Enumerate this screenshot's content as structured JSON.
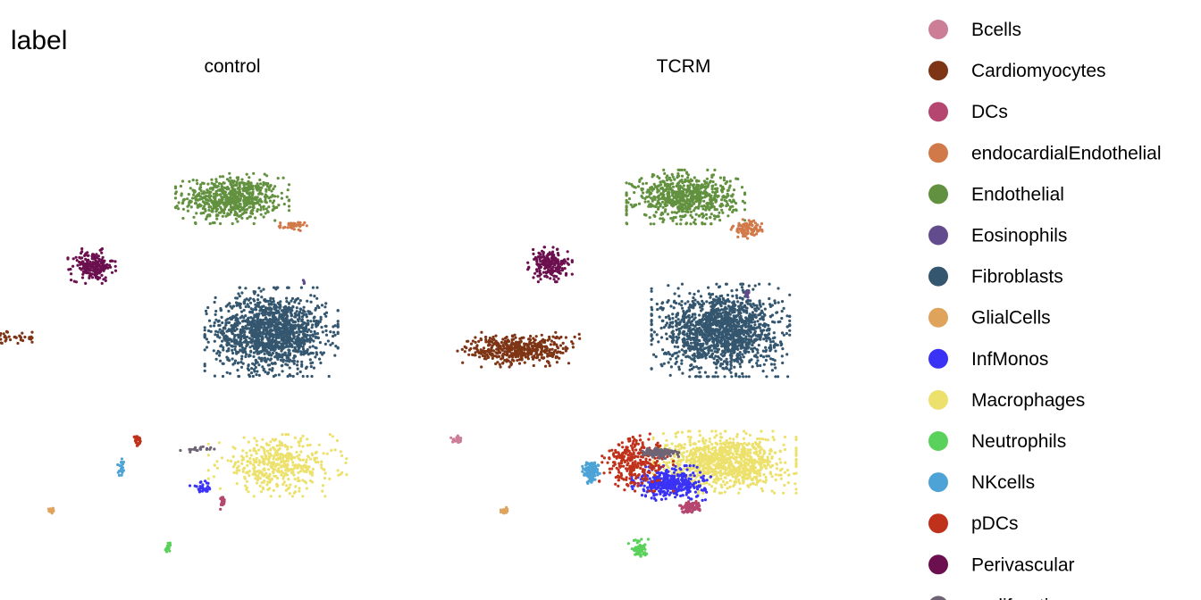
{
  "chart_data": {
    "type": "scatter",
    "title": "label",
    "facets": [
      "control",
      "TCRM"
    ],
    "legend_position": "right",
    "grid": false,
    "axes_visible": false,
    "categories": [
      {
        "name": "Bcells",
        "color": "#CC7E96"
      },
      {
        "name": "Cardiomyocytes",
        "color": "#7E3515"
      },
      {
        "name": "DCs",
        "color": "#B5466F"
      },
      {
        "name": "endocardialEndothelial",
        "color": "#D2794A"
      },
      {
        "name": "Endothelial",
        "color": "#62913F"
      },
      {
        "name": "Eosinophils",
        "color": "#634C8D"
      },
      {
        "name": "Fibroblasts",
        "color": "#34566F"
      },
      {
        "name": "GlialCells",
        "color": "#E0A35C"
      },
      {
        "name": "InfMonos",
        "color": "#3A32F5"
      },
      {
        "name": "Macrophages",
        "color": "#EDE16D"
      },
      {
        "name": "Neutrophils",
        "color": "#5AD15A"
      },
      {
        "name": "NKcells",
        "color": "#4DA3D6"
      },
      {
        "name": "pDCs",
        "color": "#C0311B"
      },
      {
        "name": "Perivascular",
        "color": "#6B0F4E"
      },
      {
        "name": "proliferating",
        "color": "#6F6476"
      }
    ],
    "clusters": [
      {
        "category": "Endothelial",
        "control": {
          "cx": 0.0,
          "cy": 8.2,
          "rx": 2.3,
          "ry": 1.3,
          "n": 650
        },
        "TCRM": {
          "cx": 0.1,
          "cy": 8.3,
          "rx": 2.4,
          "ry": 1.4,
          "n": 700
        }
      },
      {
        "category": "endocardialEndothelial",
        "control": {
          "cx": 2.9,
          "cy": 6.5,
          "rx": 0.6,
          "ry": 0.25,
          "n": 40
        },
        "TCRM": {
          "cx": 3.1,
          "cy": 6.3,
          "rx": 0.7,
          "ry": 0.5,
          "n": 90
        }
      },
      {
        "category": "Perivascular",
        "control": {
          "cx": -6.8,
          "cy": 4.0,
          "rx": 1.0,
          "ry": 0.9,
          "n": 200
        },
        "TCRM": {
          "cx": -6.5,
          "cy": 4.1,
          "rx": 0.9,
          "ry": 0.9,
          "n": 200
        }
      },
      {
        "category": "Fibroblasts",
        "control": {
          "cx": 1.9,
          "cy": -0.1,
          "rx": 2.7,
          "ry": 2.3,
          "n": 1400
        },
        "TCRM": {
          "cx": 1.8,
          "cy": 0.0,
          "rx": 2.8,
          "ry": 2.4,
          "n": 1500
        }
      },
      {
        "category": "Cardiomyocytes",
        "control": {
          "cx": -12.5,
          "cy": -0.5,
          "rx": 2.3,
          "ry": 0.35,
          "n": 220
        },
        "TCRM": {
          "cx": -8.0,
          "cy": -1.2,
          "rx": 2.5,
          "ry": 0.9,
          "n": 450
        }
      },
      {
        "category": "Macrophages",
        "control": {
          "cx": 2.2,
          "cy": -8.4,
          "rx": 2.8,
          "ry": 1.6,
          "n": 420
        },
        "TCRM": {
          "cx": 2.0,
          "cy": -8.2,
          "rx": 2.9,
          "ry": 1.6,
          "n": 950
        }
      },
      {
        "category": "InfMonos",
        "control": {
          "cx": -1.5,
          "cy": -9.8,
          "rx": 0.5,
          "ry": 0.35,
          "n": 30
        },
        "TCRM": {
          "cx": -0.6,
          "cy": -9.5,
          "rx": 1.6,
          "ry": 0.9,
          "n": 400
        }
      },
      {
        "category": "pDCs",
        "control": {
          "cx": -4.6,
          "cy": -6.9,
          "rx": 0.2,
          "ry": 0.3,
          "n": 25
        },
        "TCRM": {
          "cx": -2.3,
          "cy": -8.2,
          "rx": 1.5,
          "ry": 1.5,
          "n": 280
        }
      },
      {
        "category": "NKcells",
        "control": {
          "cx": -5.4,
          "cy": -8.6,
          "rx": 0.15,
          "ry": 0.5,
          "n": 20
        },
        "TCRM": {
          "cx": -4.5,
          "cy": -8.8,
          "rx": 0.35,
          "ry": 0.6,
          "n": 120
        }
      },
      {
        "category": "proliferating",
        "control": {
          "cx": -1.6,
          "cy": -7.4,
          "rx": 0.8,
          "ry": 0.15,
          "n": 20
        },
        "TCRM": {
          "cx": -1.2,
          "cy": -7.6,
          "rx": 0.8,
          "ry": 0.3,
          "n": 120
        }
      },
      {
        "category": "DCs",
        "control": {
          "cx": -0.5,
          "cy": -10.6,
          "rx": 0.15,
          "ry": 0.5,
          "n": 15
        },
        "TCRM": {
          "cx": 0.3,
          "cy": -11.0,
          "rx": 0.5,
          "ry": 0.35,
          "n": 90
        }
      },
      {
        "category": "GlialCells",
        "control": {
          "cx": -8.8,
          "cy": -11.2,
          "rx": 0.15,
          "ry": 0.15,
          "n": 14
        },
        "TCRM": {
          "cx": -8.7,
          "cy": -11.2,
          "rx": 0.2,
          "ry": 0.15,
          "n": 20
        }
      },
      {
        "category": "Neutrophils",
        "control": {
          "cx": -3.1,
          "cy": -13.6,
          "rx": 0.15,
          "ry": 0.4,
          "n": 16
        },
        "TCRM": {
          "cx": -2.2,
          "cy": -13.6,
          "rx": 0.4,
          "ry": 0.5,
          "n": 60
        }
      },
      {
        "category": "Bcells",
        "control": {
          "cx": 11.0,
          "cy": -6.8,
          "rx": 0.3,
          "ry": 0.2,
          "n": 25
        },
        "TCRM": {
          "cx": 11.3,
          "cy": -6.8,
          "rx": 0.4,
          "ry": 0.2,
          "n": 40
        }
      },
      {
        "category": "Eosinophils",
        "control": {
          "cx": 3.5,
          "cy": 3.0,
          "rx": 0.05,
          "ry": 0.1,
          "n": 4
        },
        "TCRM": {
          "cx": 3.1,
          "cy": 2.2,
          "rx": 0.1,
          "ry": 0.3,
          "n": 12
        }
      }
    ]
  }
}
